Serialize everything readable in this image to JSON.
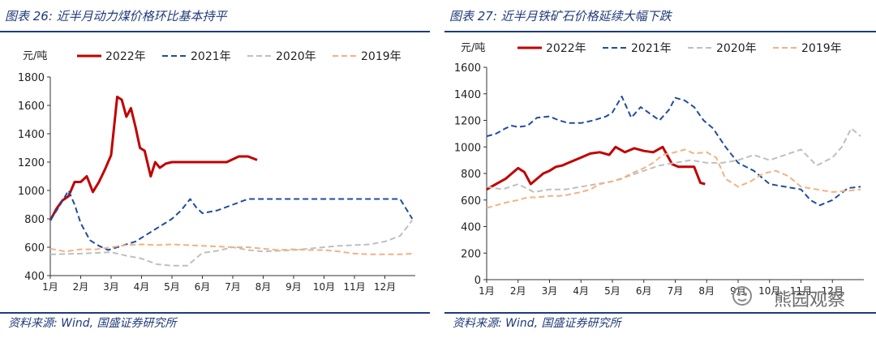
{
  "left": {
    "title": "图表 26:  近半月动力煤价格环比基本持平",
    "source": "资料来源:  Wind,  国盛证券研究所"
  },
  "right": {
    "title": "图表 27:  近半月铁矿石价格延续大幅下跌",
    "source": "资料来源:  Wind,  国盛证券研究所"
  },
  "watermark": "熊园观察",
  "chart_data": [
    {
      "type": "line",
      "title": "近半月动力煤价格环比基本持平",
      "ylabel": "元/吨",
      "ylim": [
        400,
        1800
      ],
      "yticks": [
        400,
        600,
        800,
        1000,
        1200,
        1400,
        1600,
        1800
      ],
      "xlim": [
        1,
        13
      ],
      "xticks": [
        1,
        2,
        3,
        4,
        5,
        6,
        7,
        8,
        9,
        10,
        11,
        12
      ],
      "xticklabels": [
        "1月",
        "2月",
        "3月",
        "4月",
        "5月",
        "6月",
        "7月",
        "8月",
        "9月",
        "10月",
        "11月",
        "12月"
      ],
      "legend_position": "top",
      "grid": false,
      "series": [
        {
          "name": "2022年",
          "color": "#c00000",
          "style": "solid",
          "x": [
            1.0,
            1.2,
            1.4,
            1.6,
            1.8,
            2.0,
            2.2,
            2.4,
            2.6,
            2.8,
            3.0,
            3.2,
            3.35,
            3.5,
            3.65,
            3.8,
            3.95,
            4.1,
            4.3,
            4.45,
            4.6,
            4.8,
            5.0,
            5.3,
            5.6,
            6.0,
            6.4,
            6.8,
            7.2,
            7.5,
            7.8
          ],
          "y": [
            790,
            870,
            930,
            960,
            1060,
            1060,
            1100,
            990,
            1060,
            1150,
            1250,
            1660,
            1640,
            1520,
            1580,
            1450,
            1300,
            1280,
            1100,
            1200,
            1160,
            1190,
            1200,
            1200,
            1200,
            1200,
            1200,
            1200,
            1240,
            1240,
            1215
          ]
        },
        {
          "name": "2021年",
          "color": "#1f4e9c",
          "style": "dashed",
          "x": [
            1.0,
            1.3,
            1.6,
            1.8,
            2.0,
            2.3,
            2.6,
            2.9,
            3.2,
            3.5,
            3.8,
            4.1,
            4.4,
            4.7,
            5.0,
            5.3,
            5.6,
            5.8,
            6.0,
            6.5,
            7.0,
            7.5,
            8.0,
            9.0,
            10.0,
            11.0,
            12.0,
            12.5,
            12.9
          ],
          "y": [
            790,
            890,
            1000,
            900,
            770,
            650,
            610,
            580,
            600,
            620,
            640,
            680,
            720,
            760,
            800,
            860,
            940,
            880,
            840,
            860,
            900,
            940,
            940,
            940,
            940,
            940,
            940,
            940,
            800
          ]
        },
        {
          "name": "2020年",
          "color": "#bfbfbf",
          "style": "dashed",
          "x": [
            1.0,
            2.0,
            3.0,
            3.5,
            4.0,
            4.5,
            5.0,
            5.5,
            6.0,
            6.5,
            7.0,
            7.5,
            8.0,
            9.0,
            10.0,
            10.5,
            11.0,
            11.5,
            12.0,
            12.5,
            12.9
          ],
          "y": [
            550,
            555,
            565,
            540,
            520,
            480,
            470,
            470,
            560,
            575,
            600,
            580,
            570,
            580,
            600,
            610,
            615,
            620,
            640,
            680,
            790
          ]
        },
        {
          "name": "2019年",
          "color": "#f4b183",
          "style": "dashed",
          "x": [
            1.0,
            1.5,
            2.0,
            2.5,
            3.0,
            3.5,
            4.0,
            4.5,
            5.0,
            5.5,
            6.0,
            6.5,
            7.0,
            7.5,
            8.0,
            8.5,
            9.0,
            9.5,
            10.0,
            10.5,
            11.0,
            11.5,
            12.0,
            12.5,
            12.9
          ],
          "y": [
            590,
            570,
            585,
            585,
            600,
            615,
            620,
            615,
            620,
            615,
            610,
            605,
            600,
            600,
            590,
            580,
            585,
            580,
            580,
            570,
            555,
            550,
            550,
            550,
            555
          ]
        }
      ]
    },
    {
      "type": "line",
      "title": "近半月铁矿石价格延续大幅下跌",
      "ylabel": "元/吨",
      "ylim": [
        0,
        1600
      ],
      "yticks": [
        0,
        200,
        400,
        600,
        800,
        1000,
        1200,
        1400,
        1600
      ],
      "xlim": [
        1,
        13
      ],
      "xticks": [
        1,
        2,
        3,
        4,
        5,
        6,
        7,
        8,
        9,
        10,
        11,
        12
      ],
      "xticklabels": [
        "1月",
        "2月",
        "3月",
        "4月",
        "5月",
        "6月",
        "7月",
        "8月",
        "9月",
        "10月",
        "11月",
        "12月"
      ],
      "legend_position": "top",
      "grid": false,
      "series": [
        {
          "name": "2022年",
          "color": "#c00000",
          "style": "solid",
          "x": [
            1.0,
            1.3,
            1.6,
            1.8,
            2.0,
            2.2,
            2.4,
            2.6,
            2.8,
            3.0,
            3.2,
            3.4,
            3.6,
            3.8,
            4.0,
            4.3,
            4.6,
            4.9,
            5.1,
            5.4,
            5.7,
            6.0,
            6.3,
            6.6,
            6.9,
            7.1,
            7.4,
            7.6,
            7.8,
            7.95
          ],
          "y": [
            680,
            720,
            760,
            800,
            840,
            810,
            720,
            760,
            800,
            820,
            850,
            860,
            880,
            900,
            920,
            950,
            960,
            940,
            1000,
            960,
            990,
            970,
            960,
            1000,
            870,
            850,
            850,
            850,
            730,
            720
          ]
        },
        {
          "name": "2021年",
          "color": "#1f4e9c",
          "style": "dashed",
          "x": [
            1.0,
            1.3,
            1.6,
            1.8,
            2.0,
            2.3,
            2.6,
            3.0,
            3.3,
            3.6,
            4.0,
            4.4,
            4.8,
            5.0,
            5.3,
            5.6,
            5.9,
            6.2,
            6.5,
            6.8,
            7.0,
            7.3,
            7.6,
            7.9,
            8.2,
            8.6,
            9.0,
            9.5,
            10.0,
            10.5,
            11.0,
            11.3,
            11.6,
            12.0,
            12.5,
            12.9
          ],
          "y": [
            1080,
            1100,
            1140,
            1160,
            1150,
            1160,
            1220,
            1230,
            1200,
            1180,
            1180,
            1200,
            1230,
            1260,
            1380,
            1220,
            1300,
            1250,
            1200,
            1280,
            1370,
            1350,
            1300,
            1200,
            1140,
            1000,
            880,
            820,
            720,
            700,
            680,
            600,
            560,
            600,
            690,
            700
          ]
        },
        {
          "name": "2020年",
          "color": "#bfbfbf",
          "style": "dashed",
          "x": [
            1.0,
            1.5,
            2.0,
            2.5,
            3.0,
            3.5,
            4.0,
            4.5,
            5.0,
            5.5,
            6.0,
            6.5,
            7.0,
            7.5,
            8.0,
            8.5,
            9.0,
            9.5,
            10.0,
            10.5,
            11.0,
            11.5,
            12.0,
            12.3,
            12.6,
            12.9
          ],
          "y": [
            700,
            680,
            720,
            660,
            680,
            680,
            700,
            720,
            740,
            780,
            820,
            860,
            880,
            900,
            880,
            880,
            900,
            940,
            900,
            940,
            980,
            860,
            920,
            1000,
            1140,
            1080
          ]
        },
        {
          "name": "2019年",
          "color": "#f4b183",
          "style": "dashed",
          "x": [
            1.0,
            1.3,
            1.6,
            2.0,
            2.3,
            2.6,
            3.0,
            3.3,
            3.6,
            4.0,
            4.3,
            4.6,
            5.0,
            5.3,
            5.6,
            6.0,
            6.3,
            6.6,
            7.0,
            7.3,
            7.6,
            8.0,
            8.3,
            8.6,
            9.0,
            9.4,
            9.8,
            10.2,
            10.6,
            11.0,
            11.5,
            12.0,
            12.5,
            12.9
          ],
          "y": [
            540,
            560,
            580,
            600,
            620,
            620,
            630,
            630,
            640,
            660,
            680,
            720,
            740,
            760,
            800,
            840,
            880,
            940,
            960,
            980,
            950,
            960,
            920,
            760,
            700,
            740,
            800,
            820,
            780,
            700,
            680,
            660,
            670,
            680
          ]
        }
      ]
    }
  ]
}
